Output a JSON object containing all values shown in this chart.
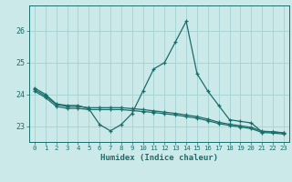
{
  "xlabel": "Humidex (Indice chaleur)",
  "xlim": [
    -0.5,
    23.5
  ],
  "ylim": [
    22.5,
    26.8
  ],
  "yticks": [
    23,
    24,
    25,
    26
  ],
  "xticks": [
    0,
    1,
    2,
    3,
    4,
    5,
    6,
    7,
    8,
    9,
    10,
    11,
    12,
    13,
    14,
    15,
    16,
    17,
    18,
    19,
    20,
    21,
    22,
    23
  ],
  "bg_color": "#cce9e9",
  "grid_color": "#aad4d4",
  "line_color": "#1a6e6a",
  "series1": {
    "x": [
      0,
      1,
      2,
      3,
      4,
      5,
      6,
      7,
      8,
      9,
      10,
      11,
      12,
      13,
      14,
      15,
      16,
      17,
      18,
      19,
      20,
      21,
      22,
      23
    ],
    "y": [
      24.2,
      24.0,
      23.7,
      23.65,
      23.65,
      23.55,
      23.05,
      22.85,
      23.05,
      23.4,
      24.1,
      24.8,
      25.0,
      25.65,
      26.3,
      24.65,
      24.1,
      23.65,
      23.2,
      23.15,
      23.1,
      22.82,
      22.82,
      22.78
    ]
  },
  "series2": {
    "x": [
      0,
      1,
      2,
      3,
      4,
      5,
      6,
      7,
      8,
      9,
      10,
      11,
      12,
      13,
      14,
      15,
      16,
      17,
      18,
      19,
      20,
      21,
      22,
      23
    ],
    "y": [
      24.15,
      23.95,
      23.68,
      23.62,
      23.62,
      23.58,
      23.58,
      23.58,
      23.58,
      23.55,
      23.52,
      23.48,
      23.44,
      23.4,
      23.35,
      23.3,
      23.22,
      23.12,
      23.06,
      23.01,
      22.96,
      22.84,
      22.82,
      22.79
    ]
  },
  "series3": {
    "x": [
      0,
      1,
      2,
      3,
      4,
      5,
      6,
      7,
      8,
      9,
      10,
      11,
      12,
      13,
      14,
      15,
      16,
      17,
      18,
      19,
      20,
      21,
      22,
      23
    ],
    "y": [
      24.1,
      23.9,
      23.62,
      23.56,
      23.56,
      23.52,
      23.52,
      23.52,
      23.52,
      23.49,
      23.46,
      23.43,
      23.39,
      23.35,
      23.3,
      23.25,
      23.17,
      23.08,
      23.02,
      22.97,
      22.92,
      22.8,
      22.78,
      22.75
    ]
  }
}
